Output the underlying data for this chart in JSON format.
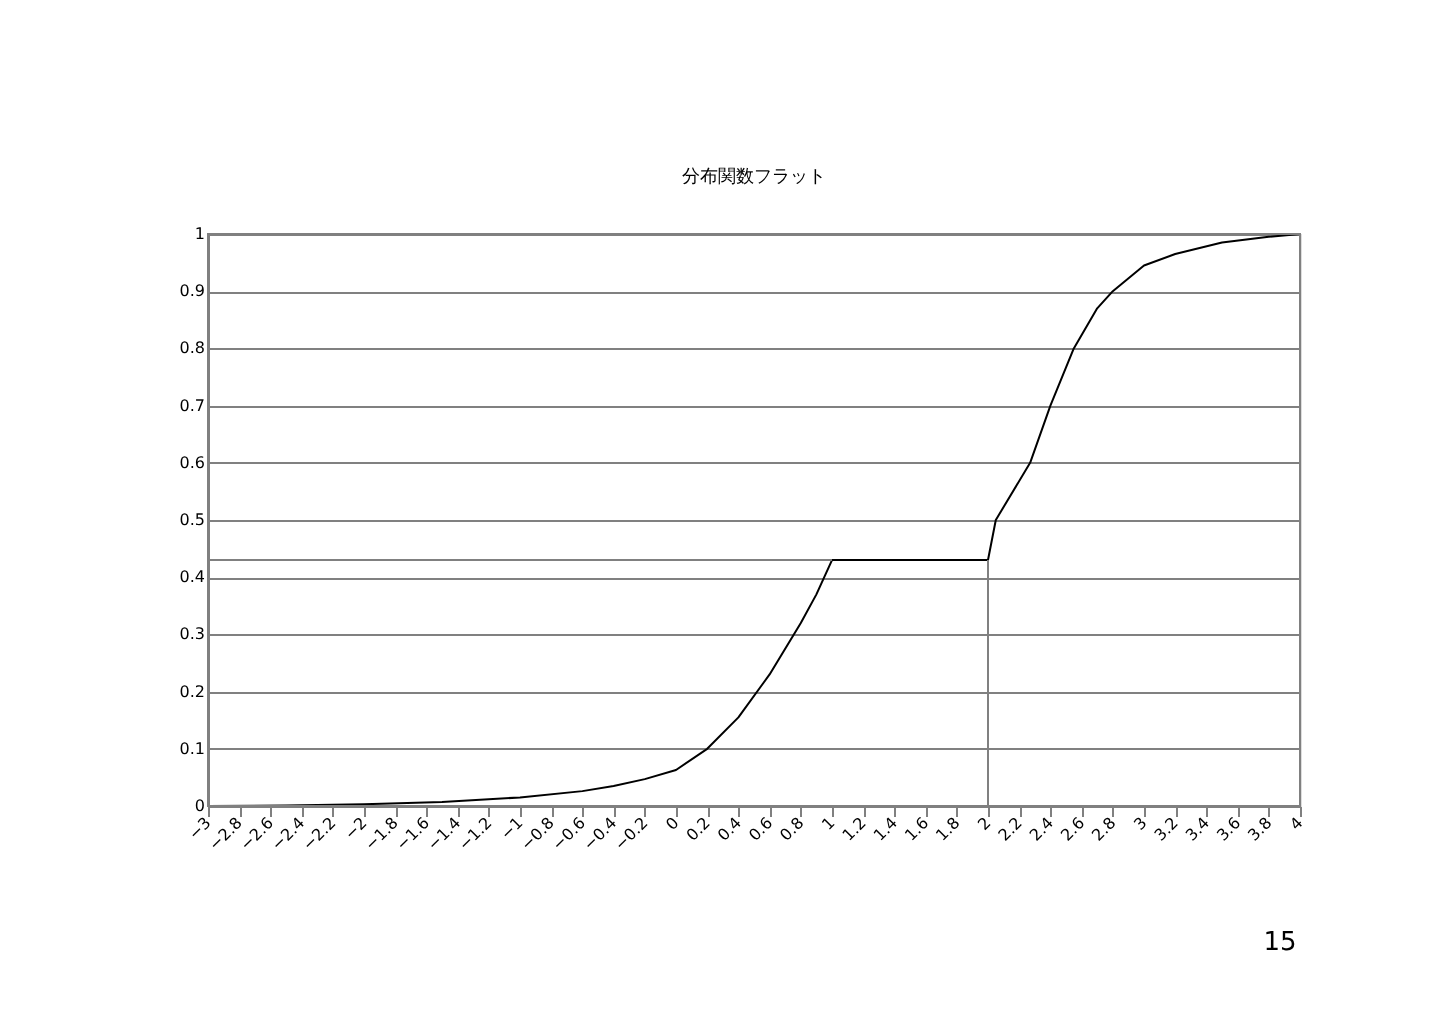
{
  "chart_data": {
    "type": "line",
    "title": "分布関数フラット",
    "x": [
      -3,
      -2.5,
      -2,
      -1.5,
      -1,
      -0.6,
      -0.4,
      -0.2,
      0,
      0.2,
      0.4,
      0.6,
      0.8,
      0.9,
      1,
      2,
      2.05,
      2.27,
      2.4,
      2.55,
      2.7,
      2.8,
      3,
      3.2,
      3.5,
      3.8,
      4
    ],
    "series": [
      {
        "color": "#000000",
        "values": [
          0,
          0.001,
          0.003,
          0.007,
          0.015,
          0.026,
          0.035,
          0.047,
          0.063,
          0.1,
          0.155,
          0.23,
          0.32,
          0.37,
          0.43,
          0.43,
          0.5,
          0.6,
          0.7,
          0.8,
          0.87,
          0.9,
          0.945,
          0.965,
          0.985,
          0.995,
          1
        ]
      }
    ],
    "xlim": [
      -3,
      4
    ],
    "xticks": [
      -3,
      -2.8,
      -2.6,
      -2.4,
      -2.2,
      -2,
      -1.8,
      -1.6,
      -1.4,
      -1.2,
      -1,
      -0.8,
      -0.6,
      -0.4,
      -0.2,
      0,
      0.2,
      0.4,
      0.6,
      0.8,
      1,
      1.2,
      1.4,
      1.6,
      1.8,
      2,
      2.2,
      2.4,
      2.6,
      2.8,
      3,
      3.2,
      3.4,
      3.6,
      3.8,
      4
    ],
    "ylim": [
      0,
      1
    ],
    "yticks": [
      0,
      0.1,
      0.2,
      0.3,
      0.4,
      0.5,
      0.6,
      0.7,
      0.8,
      0.9,
      1
    ],
    "grid": "y",
    "legend": false,
    "marker": "none",
    "line_style": "solid",
    "ref_lines": [
      {
        "axis": "y",
        "value": 0.43,
        "color": "#808080"
      },
      {
        "axis": "x",
        "value": 2,
        "color": "#808080"
      }
    ],
    "annotations": [
      "15"
    ]
  }
}
